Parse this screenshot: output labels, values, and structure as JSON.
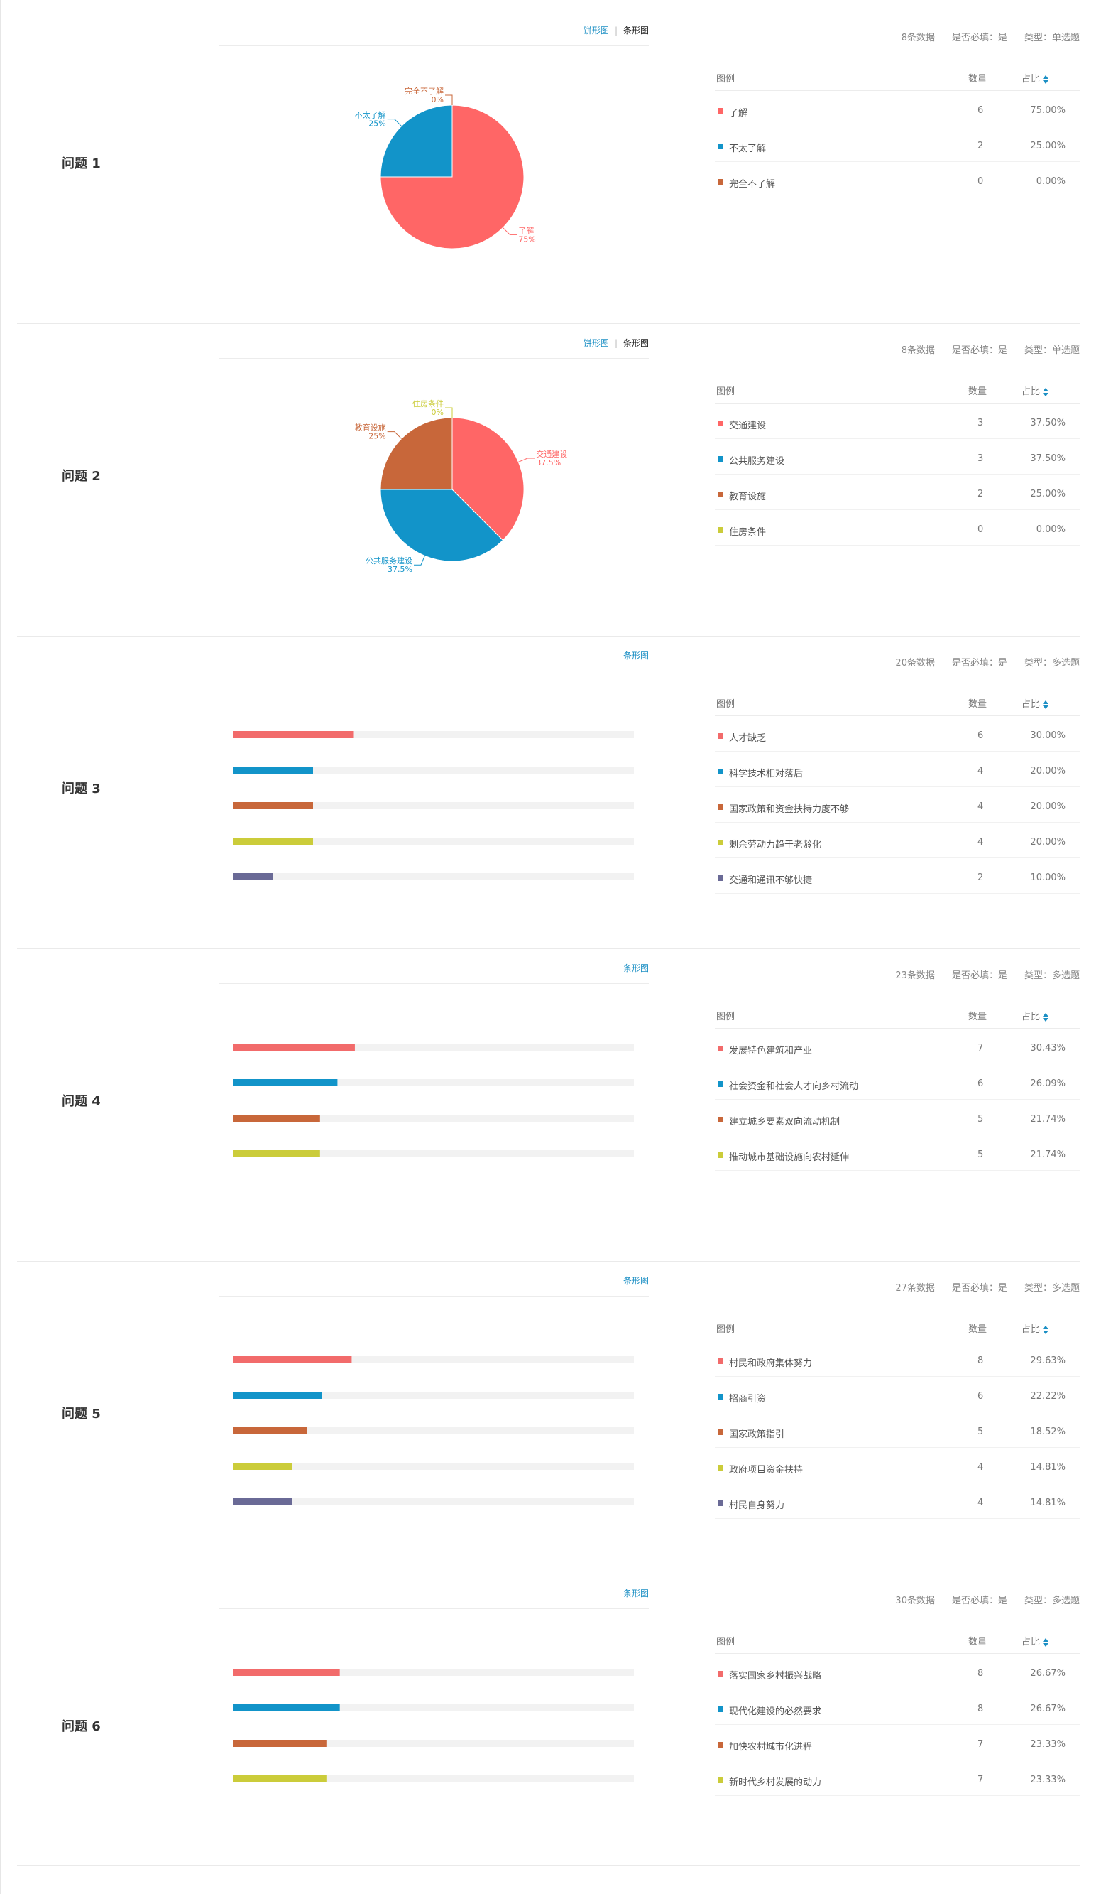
{
  "common": {
    "legend_header": "图例",
    "count_header": "数量",
    "pct_header": "占比",
    "pie_tab": "饼形图",
    "bar_tab": "条形图",
    "separator": "|"
  },
  "colors": {
    "red": "#ff6666",
    "blue": "#1294c9",
    "brown": "#c8673a",
    "yellow": "#cbcc3a",
    "purple": "#6a6a96",
    "track": "#f2f2f2"
  },
  "questions": [
    {
      "title": "问题 1",
      "chart": "pie",
      "meta_count": "8条数据",
      "meta_required": "是否必填：是",
      "meta_type": "类型：单选题",
      "rows": [
        {
          "label": "了解",
          "count": "6",
          "pct": "75.00%",
          "value": 75,
          "color": "#ff6666",
          "pie_label": "了解",
          "pie_pct": "75%"
        },
        {
          "label": "不太了解",
          "count": "2",
          "pct": "25.00%",
          "value": 25,
          "color": "#1294c9",
          "pie_label": "不太了解",
          "pie_pct": "25%"
        },
        {
          "label": "完全不了解",
          "count": "0",
          "pct": "0.00%",
          "value": 0,
          "color": "#c8673a",
          "pie_label": "完全不了解",
          "pie_pct": "0%"
        }
      ]
    },
    {
      "title": "问题 2",
      "chart": "pie",
      "meta_count": "8条数据",
      "meta_required": "是否必填：是",
      "meta_type": "类型：单选题",
      "rows": [
        {
          "label": "交通建设",
          "count": "3",
          "pct": "37.50%",
          "value": 37.5,
          "color": "#ff6666",
          "pie_label": "交通建设",
          "pie_pct": "37.5%"
        },
        {
          "label": "公共服务建设",
          "count": "3",
          "pct": "37.50%",
          "value": 37.5,
          "color": "#1294c9",
          "pie_label": "公共服务建设",
          "pie_pct": "37.5%"
        },
        {
          "label": "教育设施",
          "count": "2",
          "pct": "25.00%",
          "value": 25,
          "color": "#c8673a",
          "pie_label": "教育设施",
          "pie_pct": "25%"
        },
        {
          "label": "住房条件",
          "count": "0",
          "pct": "0.00%",
          "value": 0,
          "color": "#cbcc3a",
          "pie_label": "住房条件",
          "pie_pct": "0%"
        }
      ]
    },
    {
      "title": "问题 3",
      "chart": "bar",
      "meta_count": "20条数据",
      "meta_required": "是否必填：是",
      "meta_type": "类型：多选题",
      "rows": [
        {
          "label": "人才缺乏",
          "count": "6",
          "pct": "30.00%",
          "value": 30,
          "color": "#f26b6b"
        },
        {
          "label": "科学技术相对落后",
          "count": "4",
          "pct": "20.00%",
          "value": 20,
          "color": "#1294c9"
        },
        {
          "label": "国家政策和资金扶持力度不够",
          "count": "4",
          "pct": "20.00%",
          "value": 20,
          "color": "#c8673a"
        },
        {
          "label": "剩余劳动力趋于老龄化",
          "count": "4",
          "pct": "20.00%",
          "value": 20,
          "color": "#cbcc3a"
        },
        {
          "label": "交通和通讯不够快捷",
          "count": "2",
          "pct": "10.00%",
          "value": 10,
          "color": "#6a6a96"
        }
      ]
    },
    {
      "title": "问题 4",
      "chart": "bar",
      "meta_count": "23条数据",
      "meta_required": "是否必填：是",
      "meta_type": "类型：多选题",
      "rows": [
        {
          "label": "发展特色建筑和产业",
          "count": "7",
          "pct": "30.43%",
          "value": 30.43,
          "color": "#f26b6b"
        },
        {
          "label": "社会资金和社会人才向乡村流动",
          "count": "6",
          "pct": "26.09%",
          "value": 26.09,
          "color": "#1294c9"
        },
        {
          "label": "建立城乡要素双向流动机制",
          "count": "5",
          "pct": "21.74%",
          "value": 21.74,
          "color": "#c8673a"
        },
        {
          "label": "推动城市基础设施向农村延伸",
          "count": "5",
          "pct": "21.74%",
          "value": 21.74,
          "color": "#cbcc3a"
        }
      ]
    },
    {
      "title": "问题 5",
      "chart": "bar",
      "meta_count": "27条数据",
      "meta_required": "是否必填：是",
      "meta_type": "类型：多选题",
      "rows": [
        {
          "label": "村民和政府集体努力",
          "count": "8",
          "pct": "29.63%",
          "value": 29.63,
          "color": "#f26b6b"
        },
        {
          "label": "招商引资",
          "count": "6",
          "pct": "22.22%",
          "value": 22.22,
          "color": "#1294c9"
        },
        {
          "label": "国家政策指引",
          "count": "5",
          "pct": "18.52%",
          "value": 18.52,
          "color": "#c8673a"
        },
        {
          "label": "政府项目资金扶持",
          "count": "4",
          "pct": "14.81%",
          "value": 14.81,
          "color": "#cbcc3a"
        },
        {
          "label": "村民自身努力",
          "count": "4",
          "pct": "14.81%",
          "value": 14.81,
          "color": "#6a6a96"
        }
      ]
    },
    {
      "title": "问题 6",
      "chart": "bar",
      "meta_count": "30条数据",
      "meta_required": "是否必填：是",
      "meta_type": "类型：多选题",
      "rows": [
        {
          "label": "落实国家乡村振兴战略",
          "count": "8",
          "pct": "26.67%",
          "value": 26.67,
          "color": "#f26b6b"
        },
        {
          "label": "现代化建设的必然要求",
          "count": "8",
          "pct": "26.67%",
          "value": 26.67,
          "color": "#1294c9"
        },
        {
          "label": "加快农村城市化进程",
          "count": "7",
          "pct": "23.33%",
          "value": 23.33,
          "color": "#c8673a"
        },
        {
          "label": "新时代乡村发展的动力",
          "count": "7",
          "pct": "23.33%",
          "value": 23.33,
          "color": "#cbcc3a"
        }
      ]
    }
  ],
  "chart_data": [
    {
      "type": "pie",
      "categories": [
        "了解",
        "不太了解",
        "完全不了解"
      ],
      "values": [
        75,
        25,
        0
      ]
    },
    {
      "type": "pie",
      "categories": [
        "交通建设",
        "公共服务建设",
        "教育设施",
        "住房条件"
      ],
      "values": [
        37.5,
        37.5,
        25,
        0
      ]
    },
    {
      "type": "bar",
      "categories": [
        "人才缺乏",
        "科学技术相对落后",
        "国家政策和资金扶持力度不够",
        "剩余劳动力趋于老龄化",
        "交通和通讯不够快捷"
      ],
      "values": [
        30,
        20,
        20,
        20,
        10
      ]
    },
    {
      "type": "bar",
      "categories": [
        "发展特色建筑和产业",
        "社会资金和社会人才向乡村流动",
        "建立城乡要素双向流动机制",
        "推动城市基础设施向农村延伸"
      ],
      "values": [
        30.43,
        26.09,
        21.74,
        21.74
      ]
    },
    {
      "type": "bar",
      "categories": [
        "村民和政府集体努力",
        "招商引资",
        "国家政策指引",
        "政府项目资金扶持",
        "村民自身努力"
      ],
      "values": [
        29.63,
        22.22,
        18.52,
        14.81,
        14.81
      ]
    },
    {
      "type": "bar",
      "categories": [
        "落实国家乡村振兴战略",
        "现代化建设的必然要求",
        "加快农村城市化进程",
        "新时代乡村发展的动力"
      ],
      "values": [
        26.67,
        26.67,
        23.33,
        23.33
      ]
    }
  ]
}
